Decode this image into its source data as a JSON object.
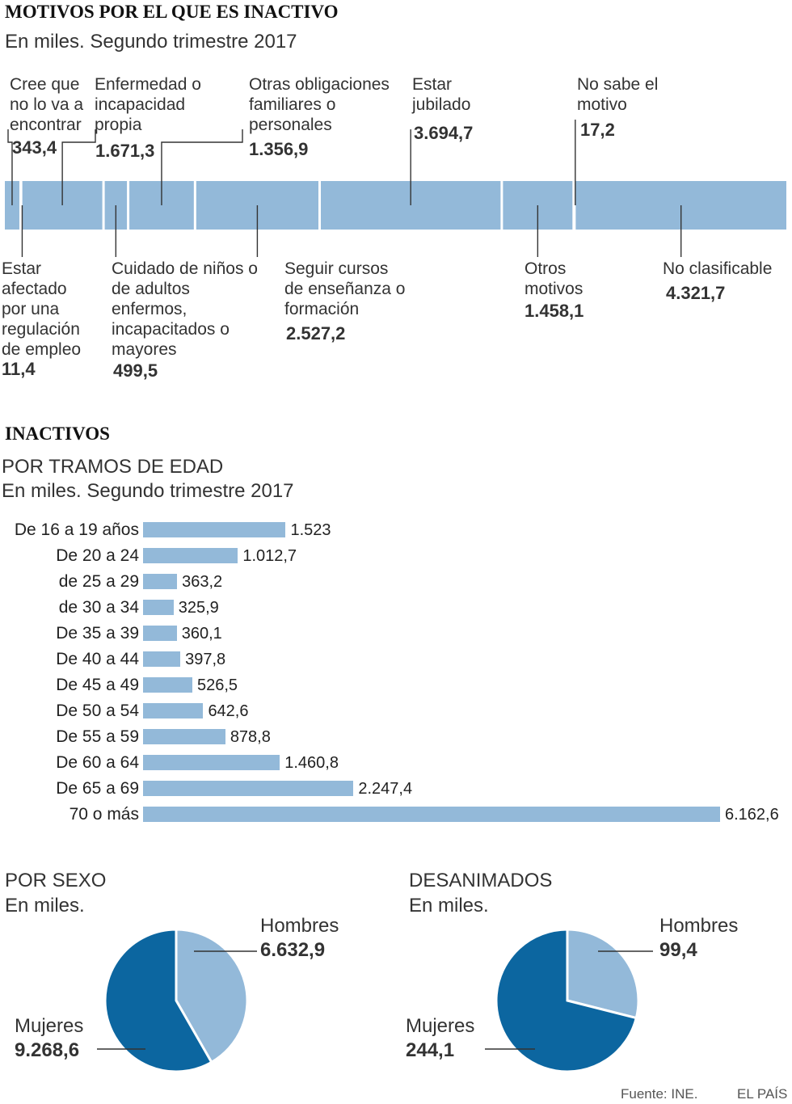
{
  "section1": {
    "title": "MOTIVOS POR EL QUE ES INACTIVO",
    "subtitle": "En miles. Segundo trimestre 2017",
    "items": [
      {
        "label": "Cree que no lo va a encontrar",
        "value": "343,4"
      },
      {
        "label": "Estar afectado por una regulación de empleo",
        "value": "11,4"
      },
      {
        "label": "Enfermedad o incapacidad propia",
        "value": "1.671,3"
      },
      {
        "label": "Cuidado de niños o de adultos enfermos, incapacitados o mayores",
        "value": "499,5"
      },
      {
        "label": "Otras obligaciones familiares o personales",
        "value": "1.356,9"
      },
      {
        "label": "Seguir cursos de enseñanza o formación",
        "value": "2.527,2"
      },
      {
        "label": "Estar jubilado",
        "value": "3.694,7"
      },
      {
        "label": "Otros motivos",
        "value": "1.458,1"
      },
      {
        "label": "No sabe el motivo",
        "value": "17,2"
      },
      {
        "label": "No clasificable",
        "value": "4.321,7"
      }
    ]
  },
  "section2": {
    "title": "INACTIVOS",
    "subtitle1": "POR TRAMOS DE EDAD",
    "subtitle2": "En miles. Segundo trimestre 2017"
  },
  "pie1": {
    "title": "POR SEXO",
    "subtitle": "En miles.",
    "hombres_label": "Hombres",
    "hombres_value": "6.632,9",
    "mujeres_label": "Mujeres",
    "mujeres_value": "9.268,6"
  },
  "pie2": {
    "title": "DESANIMADOS",
    "subtitle": "En miles.",
    "hombres_label": "Hombres",
    "hombres_value": "99,4",
    "mujeres_label": "Mujeres",
    "mujeres_value": "244,1"
  },
  "footer": {
    "source": "Fuente: INE.",
    "brand": "EL PAÍS"
  },
  "colors": {
    "light": "#93b9d9",
    "dark": "#0c66a0",
    "text": "#333333"
  },
  "chart_data": [
    {
      "type": "bar",
      "orientation": "stacked-horizontal",
      "title": "MOTIVOS POR EL QUE ES INACTIVO",
      "categories": [
        "Cree que no lo va a encontrar",
        "Estar afectado por una regulación de empleo",
        "Enfermedad o incapacidad propia",
        "Cuidado de niños o de adultos enfermos, incapacitados o mayores",
        "Otras obligaciones familiares o personales",
        "Seguir cursos de enseñanza o formación",
        "Estar jubilado",
        "Otros motivos",
        "No sabe el motivo",
        "No clasificable"
      ],
      "values": [
        343.4,
        11.4,
        1671.3,
        499.5,
        1356.9,
        2527.2,
        3694.7,
        1458.1,
        17.2,
        4321.7
      ]
    },
    {
      "type": "bar",
      "orientation": "horizontal",
      "title": "INACTIVOS",
      "categories": [
        "De 16 a 19 años",
        "De 20 a 24",
        "de 25 a 29",
        "de 30 a 34",
        "De 35 a 39",
        "De 40 a 44",
        "De 45 a 49",
        "De 50 a 54",
        "De 55 a 59",
        "De 60 a 64",
        "De 65 a 69",
        "70 o más"
      ],
      "values": [
        1523,
        1012.7,
        363.2,
        325.9,
        360.1,
        397.8,
        526.5,
        642.6,
        878.8,
        1460.8,
        2247.4,
        6162.6
      ],
      "value_labels": [
        "1.523",
        "1.012,7",
        "363,2",
        "325,9",
        "360,1",
        "397,8",
        "526,5",
        "642,6",
        "878,8",
        "1.460,8",
        "2.247,4",
        "6.162,6"
      ]
    },
    {
      "type": "pie",
      "title": "POR SEXO",
      "categories": [
        "Hombres",
        "Mujeres"
      ],
      "values": [
        6632.9,
        9268.6
      ]
    },
    {
      "type": "pie",
      "title": "DESANIMADOS",
      "categories": [
        "Hombres",
        "Mujeres"
      ],
      "values": [
        99.4,
        244.1
      ]
    }
  ]
}
